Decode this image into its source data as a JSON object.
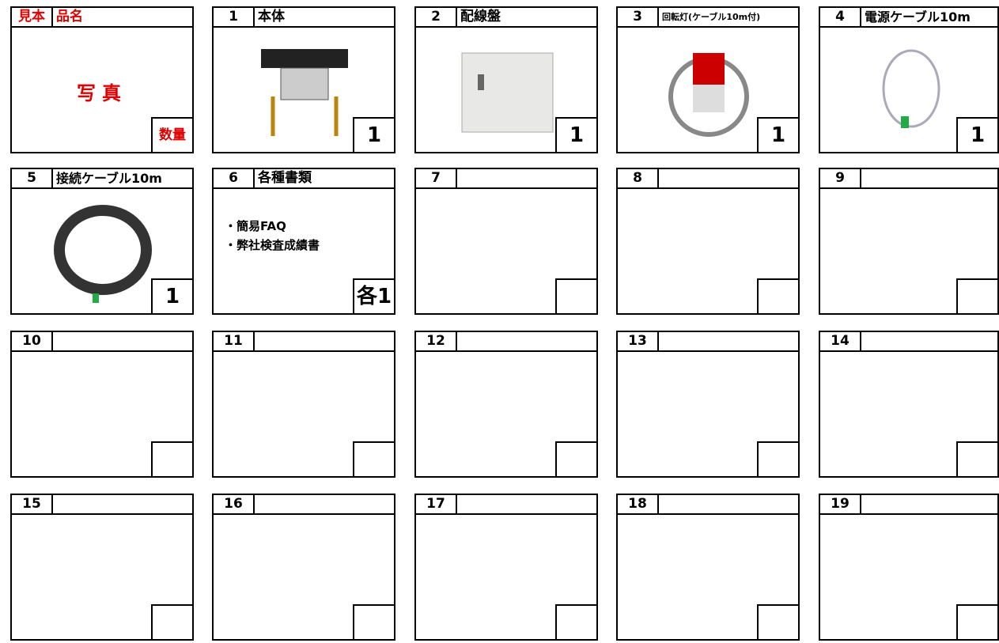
{
  "legend": {
    "number": "見本",
    "name": "品名",
    "photo": "写真",
    "quantity": "数量"
  },
  "items": [
    {
      "number": "1",
      "name": "本体",
      "quantity": "1"
    },
    {
      "number": "2",
      "name": "配線盤",
      "quantity": "1"
    },
    {
      "number": "3",
      "name": "回転灯(ケーブル10m付)",
      "quantity": "1"
    },
    {
      "number": "4",
      "name": "電源ケーブル10m",
      "quantity": "1"
    },
    {
      "number": "5",
      "name": "接続ケーブル10m",
      "quantity": "1"
    },
    {
      "number": "6",
      "name": "各種書類",
      "notes": [
        "・簡易FAQ",
        "・弊社検査成績書"
      ],
      "quantity": "各1"
    },
    {
      "number": "7"
    },
    {
      "number": "8"
    },
    {
      "number": "9"
    },
    {
      "number": "10"
    },
    {
      "number": "11"
    },
    {
      "number": "12"
    },
    {
      "number": "13"
    },
    {
      "number": "14"
    },
    {
      "number": "15"
    },
    {
      "number": "16"
    },
    {
      "number": "17"
    },
    {
      "number": "18"
    },
    {
      "number": "19"
    }
  ]
}
